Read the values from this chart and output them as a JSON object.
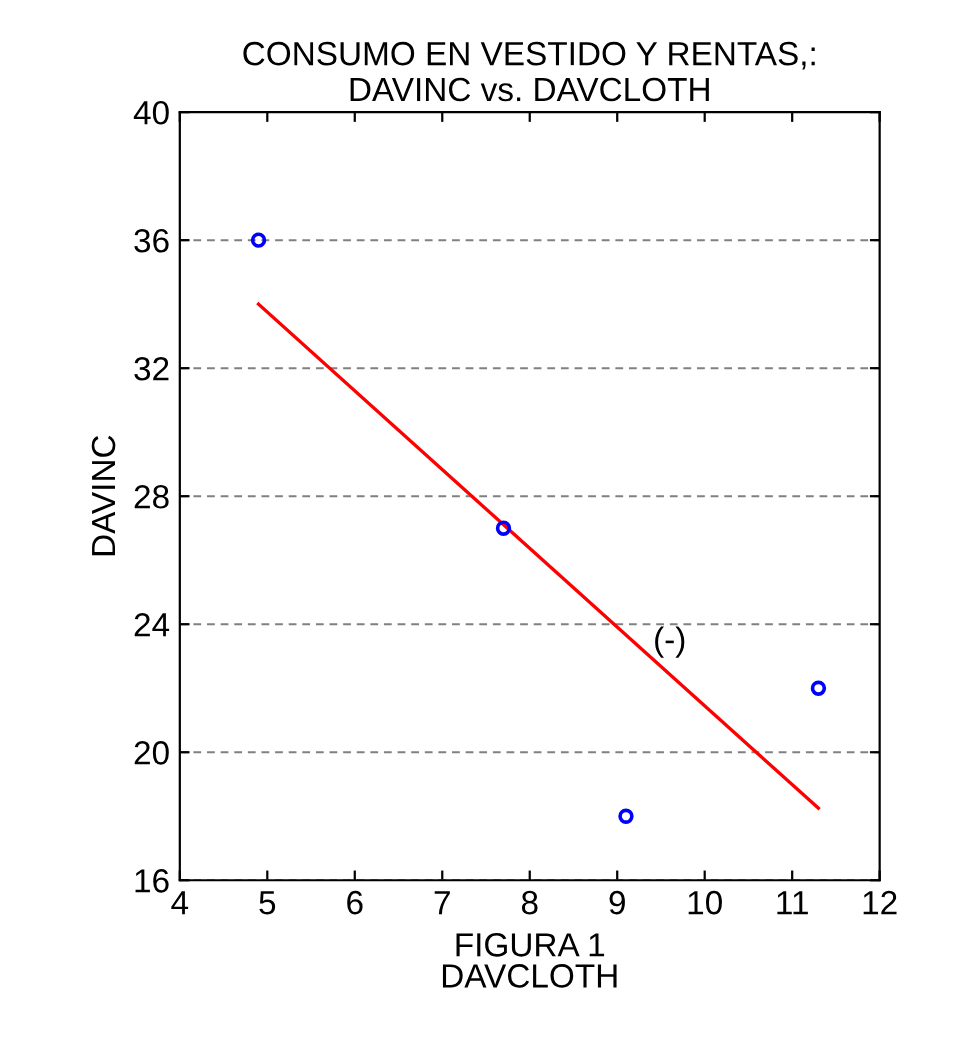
{
  "chart_data": {
    "type": "scatter",
    "title": "CONSUMO EN VESTIDO Y RENTAS,:\nDAVINC vs. DAVCLOTH",
    "xlabel": "FIGURA 1\nDAVCLOTH",
    "ylabel": "DAVINC",
    "xlim": [
      4,
      12
    ],
    "xticks": [
      4,
      5,
      6,
      7,
      8,
      9,
      10,
      11,
      12
    ],
    "ylim": [
      16,
      40
    ],
    "yticks": [
      16,
      20,
      24,
      28,
      32,
      36,
      40
    ],
    "grid": "y",
    "series": [
      {
        "marker": "circle",
        "color": "#0000ff",
        "x": [
          4.9,
          7.7,
          9.1,
          11.3
        ],
        "values": [
          36,
          27,
          18,
          22
        ]
      },
      {
        "type": "line",
        "marker": "none",
        "color": "#ff0000",
        "x": [
          4.9,
          11.3
        ],
        "values": [
          34.0,
          18.25
        ]
      }
    ],
    "annotations": [
      "(-)"
    ]
  }
}
